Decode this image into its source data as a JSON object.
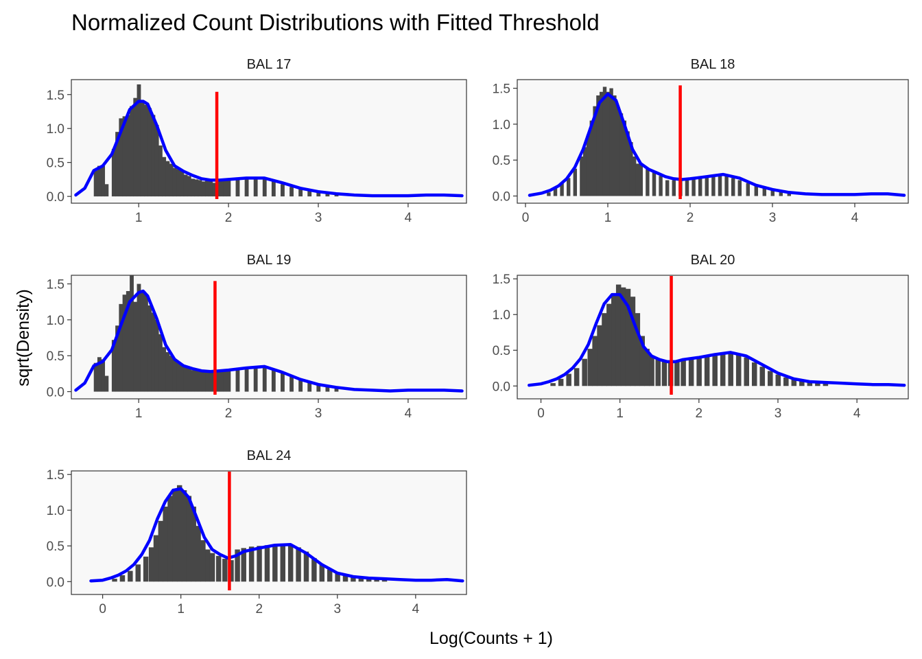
{
  "figure": {
    "title": "Normalized Count Distributions with Fitted Threshold",
    "xlabel": "Log(Counts + 1)",
    "ylabel": "sqrt(Density)",
    "colors": {
      "bars": "#474747",
      "density_line": "#0000ff",
      "threshold_line": "#ff0000",
      "panel_background": "#f8f8f8"
    }
  },
  "chart_data": [
    {
      "type": "bar",
      "panel": "BAL 17",
      "title": "BAL 17",
      "xlim": [
        0.25,
        4.65
      ],
      "ylim": [
        -0.1,
        1.72
      ],
      "xticks": [
        1,
        2,
        3,
        4
      ],
      "yticks": [
        0.0,
        0.5,
        1.0,
        1.5
      ],
      "ytick_labels": [
        "0.0",
        "0.5",
        "1.0",
        "1.5"
      ],
      "threshold": 1.87,
      "density_x": [
        0.3,
        0.4,
        0.5,
        0.6,
        0.7,
        0.8,
        0.9,
        1.0,
        1.05,
        1.1,
        1.2,
        1.3,
        1.4,
        1.5,
        1.6,
        1.7,
        1.8,
        1.9,
        2.0,
        2.2,
        2.4,
        2.6,
        2.8,
        3.0,
        3.2,
        3.4,
        3.6,
        3.8,
        4.0,
        4.2,
        4.4,
        4.6
      ],
      "density_y": [
        0.02,
        0.12,
        0.38,
        0.45,
        0.62,
        0.95,
        1.28,
        1.4,
        1.4,
        1.36,
        1.05,
        0.68,
        0.45,
        0.37,
        0.31,
        0.26,
        0.24,
        0.24,
        0.25,
        0.27,
        0.27,
        0.2,
        0.12,
        0.07,
        0.04,
        0.02,
        0.01,
        0.01,
        0.01,
        0.02,
        0.02,
        0.01
      ],
      "bars_x": [
        0.52,
        0.56,
        0.6,
        0.64,
        0.72,
        0.76,
        0.8,
        0.84,
        0.88,
        0.92,
        0.96,
        1.0,
        1.04,
        1.08,
        1.12,
        1.16,
        1.2,
        1.24,
        1.28,
        1.32,
        1.36,
        1.4,
        1.44,
        1.48,
        1.52,
        1.56,
        1.6,
        1.64,
        1.68,
        1.72,
        1.76,
        1.8,
        1.84,
        1.88,
        1.92,
        1.96,
        2.0,
        2.1,
        2.2,
        2.3,
        2.4,
        2.5,
        2.6,
        2.7,
        2.8,
        2.9,
        3.0,
        3.1,
        3.2
      ],
      "bars_y": [
        0.38,
        0.45,
        0.45,
        0.18,
        0.7,
        0.95,
        1.15,
        1.18,
        1.2,
        1.33,
        1.45,
        1.65,
        1.38,
        1.35,
        1.3,
        1.2,
        1.05,
        0.75,
        0.58,
        0.52,
        0.48,
        0.42,
        0.4,
        0.38,
        0.32,
        0.3,
        0.26,
        0.25,
        0.24,
        0.22,
        0.26,
        0.25,
        0.2,
        0.24,
        0.25,
        0.26,
        0.24,
        0.26,
        0.27,
        0.26,
        0.25,
        0.22,
        0.18,
        0.14,
        0.12,
        0.09,
        0.07,
        0.05,
        0.03
      ]
    },
    {
      "type": "bar",
      "panel": "BAL 18",
      "title": "BAL 18",
      "xlim": [
        -0.1,
        4.65
      ],
      "ylim": [
        -0.1,
        1.62
      ],
      "xticks": [
        0,
        1,
        2,
        3,
        4
      ],
      "yticks": [
        0.0,
        0.5,
        1.0,
        1.5
      ],
      "ytick_labels": [
        "0.0",
        "0.5",
        "1.0",
        "1.5"
      ],
      "threshold": 1.88,
      "density_x": [
        0.05,
        0.2,
        0.3,
        0.4,
        0.5,
        0.6,
        0.7,
        0.8,
        0.9,
        1.0,
        1.1,
        1.2,
        1.3,
        1.4,
        1.5,
        1.6,
        1.7,
        1.8,
        1.9,
        2.0,
        2.2,
        2.4,
        2.6,
        2.8,
        3.0,
        3.2,
        3.4,
        3.6,
        3.8,
        4.0,
        4.2,
        4.4,
        4.6
      ],
      "density_y": [
        0.01,
        0.04,
        0.08,
        0.14,
        0.24,
        0.4,
        0.65,
        0.98,
        1.3,
        1.42,
        1.33,
        1.0,
        0.65,
        0.45,
        0.37,
        0.32,
        0.27,
        0.24,
        0.23,
        0.24,
        0.27,
        0.3,
        0.25,
        0.15,
        0.09,
        0.05,
        0.03,
        0.02,
        0.02,
        0.02,
        0.03,
        0.03,
        0.01
      ],
      "bars_x": [
        0.28,
        0.36,
        0.44,
        0.52,
        0.6,
        0.68,
        0.72,
        0.76,
        0.8,
        0.84,
        0.88,
        0.92,
        0.96,
        1.0,
        1.04,
        1.08,
        1.12,
        1.16,
        1.2,
        1.24,
        1.28,
        1.32,
        1.36,
        1.4,
        1.48,
        1.56,
        1.64,
        1.72,
        1.8,
        1.88,
        1.96,
        2.04,
        2.12,
        2.2,
        2.28,
        2.36,
        2.44,
        2.52,
        2.6,
        2.7,
        2.8,
        2.9,
        3.0,
        3.1,
        3.2
      ],
      "bars_y": [
        0.05,
        0.12,
        0.18,
        0.25,
        0.38,
        0.55,
        0.68,
        0.85,
        1.05,
        1.25,
        1.4,
        1.45,
        1.52,
        1.45,
        1.5,
        1.4,
        1.25,
        1.15,
        1.05,
        0.9,
        0.75,
        0.55,
        0.45,
        0.44,
        0.38,
        0.33,
        0.28,
        0.22,
        0.22,
        0.22,
        0.24,
        0.26,
        0.27,
        0.28,
        0.3,
        0.31,
        0.29,
        0.25,
        0.22,
        0.18,
        0.15,
        0.11,
        0.08,
        0.06,
        0.04
      ]
    },
    {
      "type": "bar",
      "panel": "BAL 19",
      "title": "BAL 19",
      "xlim": [
        0.25,
        4.65
      ],
      "ylim": [
        -0.1,
        1.62
      ],
      "xticks": [
        1,
        2,
        3,
        4
      ],
      "yticks": [
        0.0,
        0.5,
        1.0,
        1.5
      ],
      "ytick_labels": [
        "0.0",
        "0.5",
        "1.0",
        "1.5"
      ],
      "threshold": 1.85,
      "density_x": [
        0.3,
        0.4,
        0.5,
        0.6,
        0.7,
        0.8,
        0.9,
        1.0,
        1.05,
        1.1,
        1.2,
        1.3,
        1.4,
        1.5,
        1.6,
        1.7,
        1.8,
        1.9,
        2.0,
        2.2,
        2.4,
        2.6,
        2.8,
        3.0,
        3.2,
        3.4,
        3.6,
        3.8,
        4.0,
        4.2,
        4.4,
        4.6
      ],
      "density_y": [
        0.02,
        0.12,
        0.36,
        0.42,
        0.58,
        0.92,
        1.25,
        1.38,
        1.4,
        1.33,
        1.02,
        0.65,
        0.45,
        0.36,
        0.32,
        0.29,
        0.28,
        0.29,
        0.3,
        0.33,
        0.35,
        0.27,
        0.17,
        0.1,
        0.06,
        0.03,
        0.02,
        0.01,
        0.02,
        0.02,
        0.02,
        0.01
      ],
      "bars_x": [
        0.52,
        0.56,
        0.6,
        0.64,
        0.72,
        0.76,
        0.8,
        0.84,
        0.88,
        0.92,
        0.96,
        1.0,
        1.04,
        1.08,
        1.12,
        1.16,
        1.2,
        1.24,
        1.28,
        1.32,
        1.36,
        1.4,
        1.44,
        1.48,
        1.52,
        1.56,
        1.6,
        1.64,
        1.68,
        1.72,
        1.76,
        1.8,
        1.84,
        1.88,
        1.92,
        1.96,
        2.0,
        2.1,
        2.2,
        2.3,
        2.4,
        2.5,
        2.6,
        2.7,
        2.8,
        2.9,
        3.0,
        3.1,
        3.2
      ],
      "bars_y": [
        0.4,
        0.48,
        0.45,
        0.22,
        0.72,
        0.92,
        1.22,
        1.35,
        1.4,
        1.62,
        1.25,
        1.5,
        1.4,
        1.35,
        1.2,
        1.1,
        1.0,
        0.8,
        0.62,
        0.55,
        0.5,
        0.45,
        0.4,
        0.38,
        0.36,
        0.33,
        0.3,
        0.3,
        0.28,
        0.27,
        0.28,
        0.29,
        0.28,
        0.29,
        0.3,
        0.31,
        0.3,
        0.32,
        0.33,
        0.34,
        0.35,
        0.32,
        0.27,
        0.22,
        0.17,
        0.13,
        0.1,
        0.07,
        0.05
      ]
    },
    {
      "type": "bar",
      "panel": "BAL 20",
      "title": "BAL 20",
      "xlim": [
        -0.3,
        4.65
      ],
      "ylim": [
        -0.18,
        1.55
      ],
      "xticks": [
        0,
        1,
        2,
        3,
        4
      ],
      "yticks": [
        0.0,
        0.5,
        1.0,
        1.5
      ],
      "ytick_labels": [
        "0.0",
        "0.5",
        "1.0",
        "1.5"
      ],
      "threshold": 1.65,
      "density_x": [
        -0.15,
        0.0,
        0.1,
        0.2,
        0.3,
        0.4,
        0.5,
        0.6,
        0.7,
        0.8,
        0.9,
        1.0,
        1.1,
        1.2,
        1.3,
        1.4,
        1.5,
        1.6,
        1.7,
        1.8,
        2.0,
        2.2,
        2.4,
        2.6,
        2.8,
        3.0,
        3.2,
        3.4,
        3.6,
        3.8,
        4.0,
        4.2,
        4.4,
        4.6
      ],
      "density_y": [
        0.01,
        0.03,
        0.06,
        0.1,
        0.16,
        0.25,
        0.38,
        0.58,
        0.88,
        1.15,
        1.28,
        1.28,
        1.12,
        0.82,
        0.55,
        0.42,
        0.37,
        0.34,
        0.34,
        0.37,
        0.4,
        0.44,
        0.47,
        0.42,
        0.3,
        0.18,
        0.1,
        0.06,
        0.05,
        0.04,
        0.03,
        0.02,
        0.02,
        0.01
      ],
      "bars_x": [
        0.15,
        0.25,
        0.35,
        0.45,
        0.55,
        0.62,
        0.68,
        0.74,
        0.8,
        0.86,
        0.92,
        0.98,
        1.04,
        1.1,
        1.16,
        1.22,
        1.28,
        1.34,
        1.4,
        1.48,
        1.56,
        1.64,
        1.72,
        1.8,
        1.9,
        2.0,
        2.1,
        2.2,
        2.3,
        2.4,
        2.5,
        2.6,
        2.7,
        2.8,
        2.9,
        3.0,
        3.1,
        3.2,
        3.3,
        3.4,
        3.5,
        3.6
      ],
      "bars_y": [
        0.04,
        0.1,
        0.17,
        0.25,
        0.38,
        0.52,
        0.7,
        0.85,
        1.02,
        1.15,
        1.3,
        1.42,
        1.38,
        1.36,
        1.25,
        1.02,
        0.7,
        0.52,
        0.42,
        0.38,
        0.34,
        0.32,
        0.36,
        0.37,
        0.38,
        0.4,
        0.42,
        0.44,
        0.45,
        0.47,
        0.44,
        0.4,
        0.33,
        0.27,
        0.21,
        0.16,
        0.12,
        0.09,
        0.07,
        0.05,
        0.05,
        0.04
      ]
    },
    {
      "type": "bar",
      "panel": "BAL 24",
      "title": "BAL 24",
      "xlim": [
        -0.4,
        4.65
      ],
      "ylim": [
        -0.18,
        1.55
      ],
      "xticks": [
        0,
        1,
        2,
        3,
        4
      ],
      "yticks": [
        0.0,
        0.5,
        1.0,
        1.5
      ],
      "ytick_labels": [
        "0.0",
        "0.5",
        "1.0",
        "1.5"
      ],
      "threshold": 1.62,
      "density_x": [
        -0.15,
        0.0,
        0.1,
        0.2,
        0.3,
        0.4,
        0.5,
        0.6,
        0.7,
        0.8,
        0.9,
        1.0,
        1.1,
        1.2,
        1.3,
        1.4,
        1.5,
        1.6,
        1.7,
        1.8,
        2.0,
        2.2,
        2.4,
        2.6,
        2.8,
        3.0,
        3.2,
        3.4,
        3.6,
        3.8,
        4.0,
        4.2,
        4.4,
        4.6
      ],
      "density_y": [
        0.01,
        0.02,
        0.05,
        0.09,
        0.15,
        0.24,
        0.38,
        0.58,
        0.88,
        1.12,
        1.28,
        1.3,
        1.18,
        0.9,
        0.62,
        0.45,
        0.38,
        0.33,
        0.36,
        0.42,
        0.47,
        0.51,
        0.52,
        0.4,
        0.24,
        0.12,
        0.07,
        0.05,
        0.04,
        0.03,
        0.02,
        0.02,
        0.03,
        0.01
      ],
      "bars_x": [
        0.15,
        0.25,
        0.35,
        0.45,
        0.55,
        0.62,
        0.68,
        0.74,
        0.8,
        0.86,
        0.92,
        0.98,
        1.04,
        1.1,
        1.16,
        1.22,
        1.28,
        1.34,
        1.4,
        1.48,
        1.56,
        1.64,
        1.72,
        1.8,
        1.9,
        2.0,
        2.1,
        2.2,
        2.3,
        2.4,
        2.5,
        2.6,
        2.7,
        2.8,
        2.9,
        3.0,
        3.1,
        3.2,
        3.3,
        3.4,
        3.5,
        3.6
      ],
      "bars_y": [
        0.04,
        0.09,
        0.15,
        0.24,
        0.35,
        0.48,
        0.65,
        0.85,
        1.05,
        1.2,
        1.3,
        1.35,
        1.28,
        1.2,
        1.05,
        0.78,
        0.58,
        0.45,
        0.4,
        0.36,
        0.32,
        0.3,
        0.45,
        0.47,
        0.49,
        0.5,
        0.51,
        0.52,
        0.53,
        0.52,
        0.48,
        0.42,
        0.33,
        0.24,
        0.17,
        0.12,
        0.09,
        0.06,
        0.05,
        0.05,
        0.04,
        0.04
      ]
    }
  ]
}
